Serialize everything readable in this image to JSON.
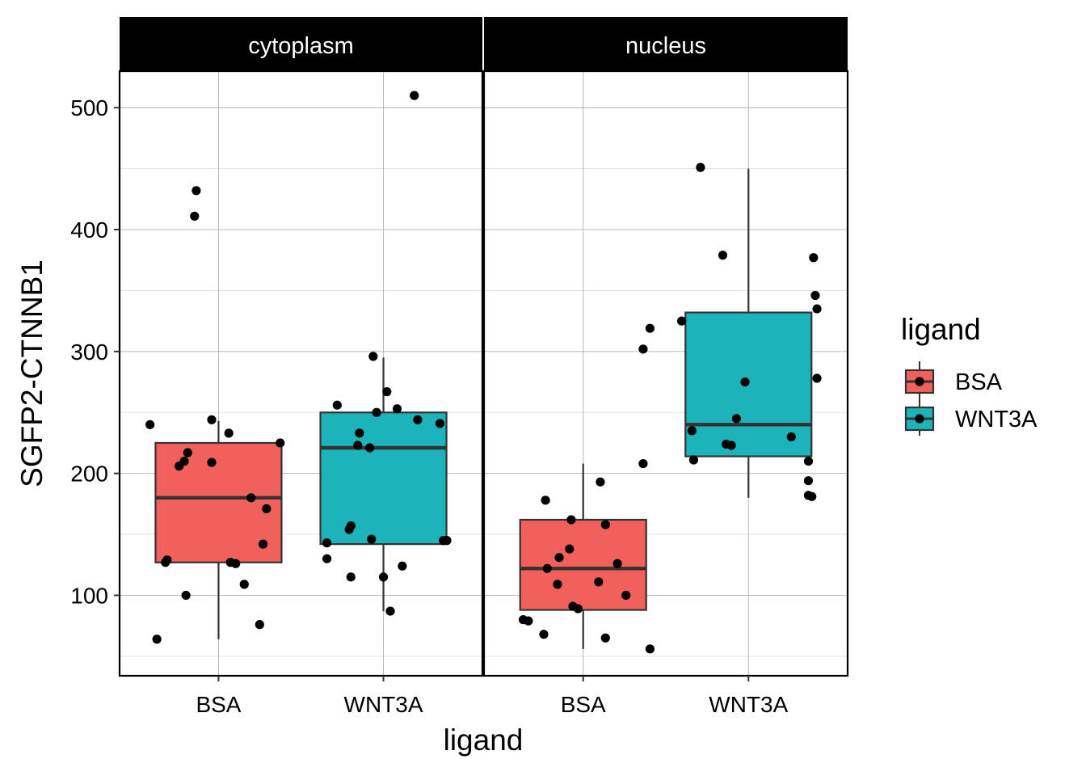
{
  "chart_data": {
    "type": "boxplot",
    "facets": [
      "cytoplasm",
      "nucleus"
    ],
    "categories": [
      "BSA",
      "WNT3A"
    ],
    "xlabel": "ligand",
    "ylabel": "SGFP2-CTNNB1",
    "ylim": [
      34,
      530
    ],
    "yticks": [
      100,
      200,
      300,
      400,
      500
    ],
    "grid": true,
    "legend": {
      "title": "ligand",
      "position": "right",
      "entries": [
        {
          "name": "BSA",
          "color": "#F2605C"
        },
        {
          "name": "WNT3A",
          "color": "#1AB4BA"
        }
      ]
    },
    "boxes": [
      {
        "facet": "cytoplasm",
        "category": "BSA",
        "color": "#F2605C",
        "whisker_low": 64,
        "q1": 127,
        "median": 180,
        "q3": 225,
        "whisker_high": 243
      },
      {
        "facet": "cytoplasm",
        "category": "WNT3A",
        "color": "#1AB4BA",
        "whisker_low": 87,
        "q1": 142,
        "median": 221,
        "q3": 250,
        "whisker_high": 295
      },
      {
        "facet": "nucleus",
        "category": "BSA",
        "color": "#F2605C",
        "whisker_low": 56,
        "q1": 88,
        "median": 122,
        "q3": 162,
        "whisker_high": 208
      },
      {
        "facet": "nucleus",
        "category": "WNT3A",
        "color": "#1AB4BA",
        "whisker_low": 180,
        "q1": 214,
        "median": 240,
        "q3": 332,
        "whisker_high": 450
      }
    ],
    "points": [
      {
        "facet": "cytoplasm",
        "category": "BSA",
        "jitter": [
          -0.4,
          -0.36,
          -0.31,
          -0.3,
          -0.23,
          -0.2,
          -0.19,
          -0.18,
          -0.14,
          -0.13,
          -0.04,
          -0.04,
          0.06,
          0.07,
          0.1,
          0.15,
          0.19,
          0.24,
          0.26,
          0.28,
          0.36
        ],
        "y": [
          240,
          64,
          127,
          129,
          206,
          210,
          100,
          217,
          411,
          432,
          244,
          209,
          233,
          127,
          126,
          109,
          180,
          76,
          142,
          171,
          225
        ]
      },
      {
        "facet": "cytoplasm",
        "category": "WNT3A",
        "jitter": [
          -0.33,
          -0.27,
          -0.33,
          -0.19,
          -0.2,
          -0.19,
          -0.15,
          -0.14,
          -0.08,
          -0.07,
          -0.06,
          -0.04,
          0.0,
          0.02,
          0.04,
          0.08,
          0.11,
          0.18,
          0.2,
          0.33,
          0.35,
          0.37
        ],
        "y": [
          143,
          256,
          130,
          115,
          154,
          157,
          223,
          233,
          221,
          146,
          296,
          250,
          115,
          267,
          87,
          253,
          124,
          510,
          244,
          241,
          145,
          145
        ]
      },
      {
        "facet": "nucleus",
        "category": "BSA",
        "jitter": [
          -0.35,
          -0.32,
          -0.23,
          -0.22,
          -0.21,
          -0.15,
          -0.14,
          -0.08,
          -0.07,
          -0.06,
          -0.03,
          0.09,
          0.1,
          0.13,
          0.13,
          0.2,
          0.25,
          0.35,
          0.35,
          0.39
        ],
        "y": [
          80,
          79,
          68,
          178,
          122,
          109,
          131,
          138,
          162,
          91,
          89,
          111,
          193,
          158,
          65,
          126,
          100,
          208,
          302,
          56
        ]
      },
      {
        "facet": "nucleus",
        "category": "WNT3A",
        "jitter": [
          -0.39,
          -0.33,
          -0.32,
          -0.28,
          -0.15,
          -0.13,
          -0.1,
          -0.07,
          -0.02,
          0.25,
          0.35,
          0.35,
          0.35,
          0.37,
          0.39,
          0.4,
          0.4
        ],
        "y": [
          325,
          235,
          211,
          451,
          379,
          224,
          223,
          245,
          275,
          230,
          210,
          194,
          182,
          181,
          346,
          335,
          278
        ]
      }
    ],
    "extra_points": [
      {
        "facet": "nucleus",
        "category": "BSA",
        "jitter": 0.39,
        "y": 319
      },
      {
        "facet": "nucleus",
        "category": "WNT3A",
        "jitter": 0.38,
        "y": 377
      }
    ]
  }
}
